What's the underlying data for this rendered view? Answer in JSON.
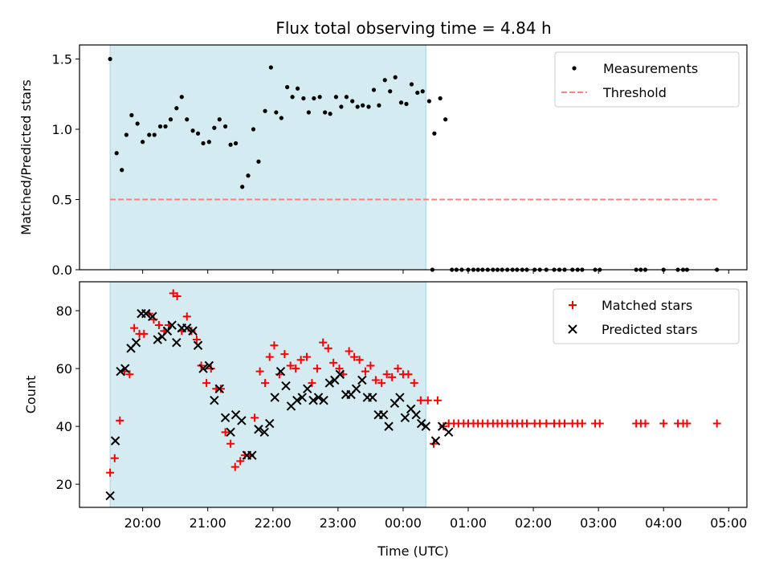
{
  "title": "Flux total observing time = 4.84 h",
  "colors": {
    "shade": "#d4ebf1",
    "shade_edge": "#a9d5e2",
    "measurement": "#000000",
    "threshold": "#ff7f7f",
    "matched": "#ff0000",
    "predicted": "#000000"
  },
  "chart_data": [
    {
      "type": "scatter",
      "panel": "top",
      "title": "Flux total observing time = 4.84 h",
      "xlabel": "",
      "ylabel": "Matched/Predicted stars",
      "x_unit": "hours since 00:00 UTC (day 1)",
      "xlim": [
        19.03,
        29.28
      ],
      "ylim": [
        0,
        1.6
      ],
      "yticks": [
        0.0,
        0.5,
        1.0,
        1.5
      ],
      "ytick_labels": [
        "0.0",
        "0.5",
        "1.0",
        "1.5"
      ],
      "grid": false,
      "legend": "top-right",
      "shaded_x_range": [
        19.5,
        24.35
      ],
      "series": [
        {
          "name": "Measurements",
          "kind": "scatter",
          "x": [
            19.5,
            19.6,
            19.68,
            19.75,
            19.83,
            19.92,
            20.0,
            20.1,
            20.18,
            20.27,
            20.35,
            20.43,
            20.52,
            20.6,
            20.68,
            20.77,
            20.85,
            20.93,
            21.02,
            21.1,
            21.18,
            21.27,
            21.35,
            21.43,
            21.53,
            21.62,
            21.7,
            21.78,
            21.88,
            21.97,
            22.05,
            22.13,
            22.22,
            22.3,
            22.38,
            22.47,
            22.55,
            22.63,
            22.72,
            22.8,
            22.88,
            22.97,
            23.05,
            23.13,
            23.22,
            23.3,
            23.38,
            23.47,
            23.55,
            23.63,
            23.72,
            23.8,
            23.88,
            23.97,
            24.05,
            24.13,
            24.22,
            24.3,
            24.4,
            24.48,
            24.57,
            24.65
          ],
          "y": [
            1.5,
            0.83,
            0.71,
            0.96,
            1.1,
            1.04,
            0.91,
            0.96,
            0.96,
            1.02,
            1.02,
            1.07,
            1.15,
            1.23,
            1.07,
            0.99,
            0.97,
            0.9,
            0.91,
            1.01,
            1.07,
            1.02,
            0.89,
            0.9,
            0.59,
            0.67,
            1.0,
            0.77,
            1.13,
            1.44,
            1.12,
            1.08,
            1.3,
            1.23,
            1.29,
            1.22,
            1.12,
            1.22,
            1.23,
            1.12,
            1.11,
            1.23,
            1.16,
            1.23,
            1.2,
            1.16,
            1.17,
            1.16,
            1.28,
            1.17,
            1.35,
            1.27,
            1.37,
            1.19,
            1.18,
            1.32,
            1.26,
            1.27,
            1.2,
            0.97,
            1.22,
            1.07
          ]
        },
        {
          "name": "Measurements",
          "kind": "scatter",
          "note_zero": true,
          "x": [
            24.45,
            24.75,
            24.82,
            24.9,
            25.0,
            25.08,
            25.15,
            25.22,
            25.3,
            25.38,
            25.45,
            25.52,
            25.6,
            25.68,
            25.75,
            25.83,
            25.9,
            26.02,
            26.1,
            26.2,
            26.32,
            26.4,
            26.48,
            26.6,
            26.68,
            26.75,
            26.95,
            27.02,
            27.58,
            27.65,
            27.72,
            28.0,
            28.22,
            28.3,
            28.36,
            28.82
          ],
          "y": [
            0,
            0,
            0,
            0,
            0,
            0,
            0,
            0,
            0,
            0,
            0,
            0,
            0,
            0,
            0,
            0,
            0,
            0,
            0,
            0,
            0,
            0,
            0,
            0,
            0,
            0,
            0,
            0,
            0,
            0,
            0,
            0,
            0,
            0,
            0,
            0
          ]
        },
        {
          "name": "Threshold",
          "kind": "line-dashed",
          "x": [
            19.5,
            28.82
          ],
          "y": [
            0.5,
            0.5
          ]
        }
      ]
    },
    {
      "type": "scatter",
      "panel": "bottom",
      "xlabel": "Time (UTC)",
      "ylabel": "Count",
      "xlim": [
        19.03,
        29.28
      ],
      "ylim": [
        12,
        90
      ],
      "yticks": [
        20,
        40,
        60,
        80
      ],
      "ytick_labels": [
        "20",
        "40",
        "60",
        "80"
      ],
      "xticks": [
        20,
        21,
        22,
        23,
        24,
        25,
        26,
        27,
        28,
        29
      ],
      "xtick_labels": [
        "20:00",
        "21:00",
        "22:00",
        "23:00",
        "00:00",
        "01:00",
        "02:00",
        "03:00",
        "04:00",
        "05:00"
      ],
      "grid": false,
      "legend": "top-right",
      "shaded_x_range": [
        19.5,
        24.35
      ],
      "series": [
        {
          "name": "Matched stars",
          "marker": "+",
          "x": [
            19.5,
            19.57,
            19.65,
            19.72,
            19.8,
            19.87,
            19.95,
            20.02,
            20.1,
            20.17,
            20.25,
            20.33,
            20.4,
            20.47,
            20.53,
            20.6,
            20.68,
            20.75,
            20.83,
            20.9,
            20.98,
            21.05,
            21.13,
            21.2,
            21.27,
            21.35,
            21.42,
            21.5,
            21.57,
            21.65,
            21.72,
            21.8,
            21.88,
            21.95,
            22.02,
            22.1,
            22.18,
            22.27,
            22.35,
            22.43,
            22.52,
            22.6,
            22.68,
            22.77,
            22.85,
            22.93,
            23.02,
            23.08,
            23.17,
            23.25,
            23.33,
            23.42,
            23.5,
            23.58,
            23.67,
            23.75,
            23.83,
            23.92,
            24.0,
            24.08,
            24.17,
            24.27,
            24.38,
            24.47,
            24.53,
            24.62,
            24.7,
            24.78,
            24.85,
            24.93,
            25.0,
            25.08,
            25.15,
            25.22,
            25.3,
            25.38,
            25.45,
            25.52,
            25.6,
            25.68,
            25.75,
            25.83,
            25.9,
            26.02,
            26.1,
            26.2,
            26.32,
            26.4,
            26.48,
            26.6,
            26.68,
            26.75,
            26.95,
            27.02,
            27.58,
            27.65,
            27.72,
            28.0,
            28.22,
            28.3,
            28.36,
            28.82
          ],
          "y": [
            24,
            29,
            42,
            59,
            58,
            74,
            72,
            72,
            79,
            77,
            75,
            73,
            75,
            86,
            85,
            73,
            78,
            73,
            70,
            61,
            55,
            60,
            53,
            53,
            38,
            34,
            26,
            28,
            30,
            30,
            43,
            59,
            55,
            64,
            68,
            58,
            65,
            61,
            60,
            63,
            64,
            55,
            60,
            69,
            67,
            62,
            60,
            58,
            66,
            64,
            63,
            59,
            61,
            56,
            55,
            58,
            57,
            60,
            58,
            58,
            55,
            49,
            49,
            34,
            49,
            40,
            41,
            41,
            41,
            41,
            41,
            41,
            41,
            41,
            41,
            41,
            41,
            41,
            41,
            41,
            41,
            41,
            41,
            41,
            41,
            41,
            41,
            41,
            41,
            41,
            41,
            41,
            41,
            41,
            41,
            41,
            41,
            41,
            41,
            41,
            41,
            41
          ]
        },
        {
          "name": "Predicted stars",
          "marker": "x",
          "x": [
            19.5,
            19.58,
            19.66,
            19.73,
            19.82,
            19.9,
            19.98,
            20.05,
            20.15,
            20.23,
            20.3,
            20.38,
            20.45,
            20.52,
            20.6,
            20.68,
            20.77,
            20.85,
            20.93,
            21.02,
            21.1,
            21.18,
            21.27,
            21.35,
            21.43,
            21.52,
            21.6,
            21.68,
            21.78,
            21.87,
            21.95,
            22.03,
            22.12,
            22.2,
            22.28,
            22.37,
            22.45,
            22.53,
            22.62,
            22.7,
            22.78,
            22.87,
            22.95,
            23.03,
            23.12,
            23.2,
            23.28,
            23.37,
            23.45,
            23.53,
            23.62,
            23.7,
            23.78,
            23.87,
            23.95,
            24.03,
            24.12,
            24.2,
            24.28,
            24.35,
            24.5,
            24.6,
            24.7
          ],
          "y": [
            16,
            35,
            59,
            60,
            67,
            69,
            79,
            79,
            78,
            70,
            71,
            73,
            75,
            69,
            74,
            74,
            73,
            68,
            60,
            61,
            49,
            53,
            43,
            38,
            44,
            42,
            30,
            30,
            39,
            38,
            41,
            50,
            59,
            54,
            47,
            49,
            50,
            53,
            49,
            50,
            49,
            55,
            56,
            58,
            51,
            51,
            53,
            56,
            50,
            50,
            44,
            44,
            40,
            48,
            50,
            43,
            46,
            44,
            41,
            40,
            35,
            40,
            38
          ]
        }
      ]
    }
  ]
}
